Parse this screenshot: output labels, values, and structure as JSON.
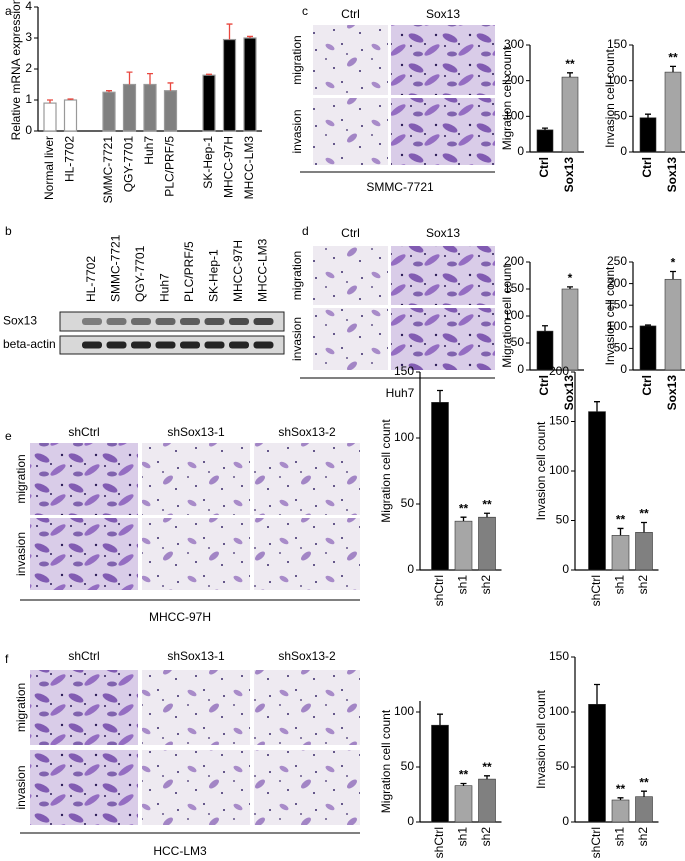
{
  "figure": {
    "panel_labels": [
      "a",
      "b",
      "c",
      "d",
      "e",
      "f"
    ],
    "blot": {
      "lanes": [
        "HL-7702",
        "SMMC-7721",
        "QGY-7701",
        "Huh7",
        "PLC/PRF/5",
        "SK-Hep-1",
        "MHCC-97H",
        "MHCC-LM3"
      ],
      "rows": [
        "Sox13",
        "beta-actin"
      ]
    },
    "micrographs": [
      {
        "columns": [
          "Ctrl",
          "Sox13"
        ],
        "rows": [
          "migration",
          "invasion"
        ],
        "cell_line": "SMMC-7721"
      },
      {
        "columns": [
          "Ctrl",
          "Sox13"
        ],
        "rows": [
          "migration",
          "invasion"
        ],
        "cell_line": "Huh7"
      },
      {
        "columns": [
          "shCtrl",
          "shSox13-1",
          "shSox13-2"
        ],
        "rows": [
          "migration",
          "invasion"
        ],
        "cell_line": "MHCC-97H"
      },
      {
        "columns": [
          "shCtrl",
          "shSox13-1",
          "shSox13-2"
        ],
        "rows": [
          "migration",
          "invasion"
        ],
        "cell_line": "HCC-LM3"
      }
    ]
  },
  "chart_data": [
    {
      "type": "bar",
      "y_label": "Relative mRNA expression",
      "categories": [
        "Normal liver",
        "HL-7702",
        "SMMC-7721",
        "QGY-7701",
        "Huh7",
        "PLC/PRF/5",
        "SK-Hep-1",
        "MHCC-97H",
        "MHCC-LM3"
      ],
      "values": [
        0.9,
        1.0,
        1.25,
        1.5,
        1.5,
        1.3,
        1.8,
        2.95,
        3.0
      ],
      "errors": [
        0.1,
        0.03,
        0.05,
        0.4,
        0.35,
        0.25,
        0.03,
        0.5,
        0.05
      ],
      "colors": [
        "#ffffff",
        "#ffffff",
        "#808080",
        "#808080",
        "#808080",
        "#808080",
        "#000000",
        "#000000",
        "#000000"
      ],
      "error_color": "#e8473f",
      "ylim": [
        0,
        4
      ],
      "yticks": [
        0,
        1,
        2,
        3,
        4
      ]
    },
    {
      "type": "bar",
      "y_label": "Migration cell count",
      "categories": [
        "Ctrl",
        "Sox13"
      ],
      "values": [
        62,
        210
      ],
      "errors": [
        5,
        12
      ],
      "colors": [
        "#000000",
        "#a6a6a6"
      ],
      "error_color": "#000000",
      "annotations": [
        null,
        "**"
      ],
      "ylim": [
        0,
        300
      ],
      "yticks": [
        0,
        100,
        200,
        300
      ]
    },
    {
      "type": "bar",
      "y_label": "Invasion cell count",
      "categories": [
        "Ctrl",
        "Sox13"
      ],
      "values": [
        48,
        112
      ],
      "errors": [
        5,
        8
      ],
      "colors": [
        "#000000",
        "#a6a6a6"
      ],
      "error_color": "#000000",
      "annotations": [
        null,
        "**"
      ],
      "ylim": [
        0,
        150
      ],
      "yticks": [
        0,
        50,
        100,
        150
      ]
    },
    {
      "type": "bar",
      "y_label": "Migration cell count",
      "categories": [
        "Ctrl",
        "Sox13"
      ],
      "values": [
        72,
        150
      ],
      "errors": [
        10,
        4
      ],
      "colors": [
        "#000000",
        "#a6a6a6"
      ],
      "error_color": "#000000",
      "annotations": [
        null,
        "*"
      ],
      "ylim": [
        0,
        200
      ],
      "yticks": [
        0,
        50,
        100,
        150,
        200
      ]
    },
    {
      "type": "bar",
      "y_label": "Invasion cell count",
      "categories": [
        "Ctrl",
        "Sox13"
      ],
      "values": [
        102,
        210
      ],
      "errors": [
        2,
        18
      ],
      "colors": [
        "#000000",
        "#a6a6a6"
      ],
      "error_color": "#000000",
      "annotations": [
        null,
        "*"
      ],
      "ylim": [
        0,
        250
      ],
      "yticks": [
        0,
        50,
        100,
        150,
        200,
        250
      ]
    },
    {
      "type": "bar",
      "y_label": "Migration cell count",
      "categories": [
        "shCtrl",
        "sh1",
        "sh2"
      ],
      "values": [
        127,
        37,
        40
      ],
      "errors": [
        9,
        3,
        3
      ],
      "colors": [
        "#000000",
        "#a6a6a6",
        "#808080"
      ],
      "error_color": "#000000",
      "annotations": [
        null,
        "**",
        "**"
      ],
      "ylim": [
        0,
        150
      ],
      "yticks": [
        0,
        50,
        100,
        150
      ]
    },
    {
      "type": "bar",
      "y_label": "Invasion cell count",
      "categories": [
        "shCtrl",
        "sh1",
        "sh2"
      ],
      "values": [
        160,
        35,
        38
      ],
      "errors": [
        10,
        7,
        10
      ],
      "colors": [
        "#000000",
        "#a6a6a6",
        "#808080"
      ],
      "error_color": "#000000",
      "annotations": [
        null,
        "**",
        "**"
      ],
      "ylim": [
        0,
        200
      ],
      "yticks": [
        0,
        50,
        100,
        150,
        200
      ]
    },
    {
      "type": "bar",
      "y_label": "Migration cell count",
      "categories": [
        "shCtrl",
        "sh1",
        "sh2"
      ],
      "values": [
        88,
        33,
        39
      ],
      "errors": [
        10,
        2,
        3
      ],
      "colors": [
        "#000000",
        "#a6a6a6",
        "#808080"
      ],
      "error_color": "#000000",
      "annotations": [
        null,
        "**",
        "**"
      ],
      "ylim": [
        0,
        110
      ],
      "yticks": [
        0,
        50,
        100
      ]
    },
    {
      "type": "bar",
      "y_label": "Invasion cell count",
      "categories": [
        "shCtrl",
        "sh1",
        "sh2"
      ],
      "values": [
        107,
        20,
        23
      ],
      "errors": [
        18,
        2,
        5
      ],
      "colors": [
        "#000000",
        "#a6a6a6",
        "#808080"
      ],
      "error_color": "#000000",
      "annotations": [
        null,
        "**",
        "**"
      ],
      "ylim": [
        0,
        150
      ],
      "yticks": [
        0,
        50,
        100,
        150
      ]
    }
  ]
}
